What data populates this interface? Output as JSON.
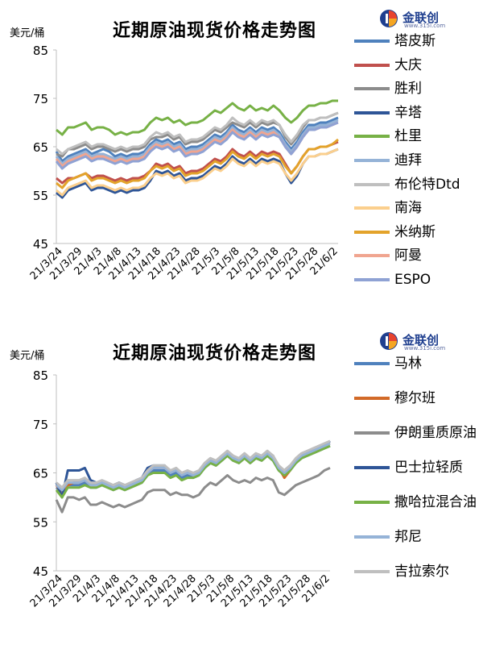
{
  "chart_data": [
    {
      "type": "line",
      "title": "近期原油现货价格走势图",
      "unit_label": "美元/桶",
      "ylim": [
        45,
        85
      ],
      "yticks": [
        45,
        55,
        65,
        75,
        85
      ],
      "xtick_labels": [
        "21/3/24",
        "21/3/29",
        "21/4/3",
        "21/4/8",
        "21/4/13",
        "21/4/18",
        "21/4/23",
        "21/4/28",
        "21/5/3",
        "21/5/8",
        "21/5/13",
        "21/5/18",
        "21/5/23",
        "21/5/28",
        "21/6/2"
      ],
      "legend_position": "right",
      "series": [
        {
          "name": "塔皮斯",
          "color": "#4f81bd",
          "values": [
            64.0,
            62.0,
            63.0,
            63.5,
            64.0,
            64.5,
            63.5,
            64.0,
            64.5,
            64.0,
            63.0,
            63.5,
            63.0,
            63.5,
            63.5,
            64.0,
            65.5,
            66.5,
            66.0,
            66.5,
            65.5,
            66.0,
            64.5,
            65.0,
            65.0,
            65.5,
            66.5,
            67.5,
            67.0,
            68.0,
            69.5,
            68.5,
            68.0,
            69.0,
            68.0,
            69.0,
            68.5,
            69.0,
            68.0,
            66.0,
            64.5,
            66.0,
            68.0,
            69.5,
            69.5,
            70.0,
            70.0,
            70.5,
            71.0
          ]
        },
        {
          "name": "大庆",
          "color": "#c0504d",
          "values": [
            58.5,
            57.5,
            58.5,
            58.5,
            59.0,
            59.5,
            58.5,
            59.0,
            59.0,
            58.5,
            58.0,
            58.5,
            58.0,
            58.5,
            58.5,
            59.0,
            60.0,
            61.5,
            61.0,
            61.5,
            60.5,
            61.0,
            59.5,
            60.0,
            60.0,
            60.5,
            61.5,
            62.5,
            62.0,
            63.0,
            64.5,
            63.5,
            63.0,
            64.0,
            63.0,
            64.0,
            63.5,
            64.0,
            63.5,
            61.5,
            59.5,
            61.0,
            63.0,
            64.5,
            64.5,
            65.0,
            65.0,
            65.5,
            66.0
          ]
        },
        {
          "name": "胜利",
          "color": "#8c8c8c",
          "values": [
            63.5,
            63.0,
            64.5,
            64.5,
            65.0,
            65.5,
            64.5,
            65.0,
            65.0,
            64.5,
            64.0,
            64.5,
            64.0,
            64.5,
            64.5,
            65.0,
            66.5,
            67.0,
            67.0,
            67.5,
            66.5,
            67.0,
            65.5,
            66.0,
            66.0,
            66.5,
            67.5,
            68.5,
            68.0,
            69.0,
            70.0,
            69.5,
            69.0,
            70.0,
            69.0,
            70.0,
            69.5,
            70.0,
            69.5,
            67.0,
            65.5,
            67.0,
            69.0,
            70.5,
            70.5,
            71.0,
            71.0,
            71.5,
            72.0
          ]
        },
        {
          "name": "辛塔",
          "color": "#2e5597",
          "values": [
            55.5,
            54.5,
            56.0,
            56.5,
            57.0,
            57.5,
            56.0,
            56.5,
            56.5,
            56.0,
            55.5,
            56.0,
            55.5,
            56.0,
            56.0,
            56.5,
            58.0,
            60.0,
            59.5,
            60.0,
            59.0,
            59.5,
            58.0,
            58.5,
            58.5,
            59.0,
            60.0,
            61.0,
            60.5,
            61.5,
            63.0,
            62.0,
            61.5,
            62.5,
            61.5,
            62.5,
            62.0,
            62.5,
            62.0,
            59.5,
            57.5,
            59.0,
            61.5,
            63.0,
            63.0,
            63.5,
            63.5,
            64.0,
            64.5
          ]
        },
        {
          "name": "杜里",
          "color": "#77b146",
          "values": [
            68.5,
            67.5,
            69.0,
            69.0,
            69.5,
            70.0,
            68.5,
            69.0,
            69.0,
            68.5,
            67.5,
            68.0,
            67.5,
            68.0,
            68.0,
            68.5,
            70.0,
            71.0,
            70.5,
            71.0,
            70.0,
            70.5,
            69.5,
            70.0,
            70.0,
            70.5,
            71.5,
            72.5,
            72.0,
            73.0,
            74.0,
            73.0,
            72.5,
            73.5,
            72.5,
            73.0,
            72.5,
            73.5,
            72.5,
            71.0,
            70.0,
            71.0,
            72.5,
            73.5,
            73.5,
            74.0,
            74.0,
            74.5,
            74.5
          ]
        },
        {
          "name": "迪拜",
          "color": "#95b3d7",
          "values": [
            63.0,
            61.5,
            62.5,
            63.0,
            63.5,
            64.0,
            63.0,
            63.5,
            63.5,
            63.0,
            62.5,
            63.0,
            62.5,
            63.0,
            63.0,
            63.5,
            65.0,
            66.0,
            65.5,
            66.0,
            65.0,
            65.5,
            64.0,
            64.5,
            64.5,
            65.0,
            66.0,
            67.0,
            66.5,
            67.5,
            69.0,
            68.0,
            67.5,
            68.5,
            67.5,
            68.5,
            68.0,
            68.5,
            67.5,
            65.5,
            64.0,
            65.5,
            67.5,
            69.0,
            69.0,
            69.5,
            69.5,
            70.0,
            70.5
          ]
        },
        {
          "name": "布伦特Dtd",
          "color": "#bfbfbf",
          "values": [
            64.5,
            63.5,
            64.5,
            65.0,
            65.5,
            66.0,
            65.0,
            65.5,
            65.5,
            65.0,
            64.5,
            65.0,
            64.5,
            65.0,
            65.0,
            65.5,
            67.0,
            68.0,
            67.5,
            68.0,
            67.0,
            67.5,
            66.0,
            66.5,
            66.5,
            67.0,
            68.0,
            69.0,
            68.5,
            69.5,
            71.0,
            70.0,
            69.5,
            70.5,
            69.5,
            70.5,
            70.0,
            70.5,
            69.5,
            67.5,
            66.0,
            67.5,
            69.5,
            70.5,
            70.5,
            71.0,
            71.0,
            71.5,
            72.0
          ]
        },
        {
          "name": "南海",
          "color": "#fbcf8d",
          "values": [
            56.0,
            55.0,
            56.5,
            57.0,
            57.5,
            58.0,
            56.5,
            57.0,
            57.0,
            56.5,
            56.0,
            56.5,
            56.0,
            56.5,
            56.5,
            57.0,
            58.5,
            59.5,
            59.0,
            59.5,
            58.5,
            59.0,
            57.5,
            58.0,
            58.0,
            58.5,
            59.5,
            60.5,
            60.0,
            61.0,
            62.5,
            61.5,
            61.0,
            62.0,
            61.0,
            62.0,
            61.5,
            62.0,
            61.5,
            59.5,
            58.0,
            59.5,
            61.5,
            63.0,
            63.0,
            63.5,
            63.5,
            64.0,
            64.5
          ]
        },
        {
          "name": "米纳斯",
          "color": "#e3a32b",
          "values": [
            57.5,
            56.5,
            58.0,
            58.5,
            59.0,
            59.5,
            58.0,
            58.5,
            58.5,
            58.0,
            57.5,
            58.0,
            57.5,
            58.0,
            58.0,
            58.5,
            60.0,
            61.0,
            60.5,
            61.0,
            60.0,
            60.5,
            59.0,
            59.5,
            59.5,
            60.0,
            61.0,
            62.0,
            61.5,
            62.5,
            64.0,
            63.0,
            62.5,
            63.5,
            62.5,
            63.5,
            63.0,
            63.5,
            63.0,
            61.0,
            59.5,
            61.0,
            63.0,
            64.5,
            64.5,
            65.0,
            65.0,
            65.5,
            66.5
          ]
        },
        {
          "name": "阿曼",
          "color": "#f0a590",
          "values": [
            62.5,
            61.0,
            62.0,
            62.5,
            63.0,
            63.5,
            62.5,
            63.0,
            63.0,
            62.5,
            62.0,
            62.5,
            62.0,
            62.5,
            62.5,
            63.0,
            64.5,
            65.5,
            65.0,
            65.5,
            64.5,
            65.0,
            63.5,
            64.0,
            64.0,
            64.5,
            65.5,
            66.5,
            66.0,
            67.0,
            68.5,
            67.5,
            67.0,
            68.0,
            67.0,
            68.0,
            67.5,
            68.0,
            67.0,
            65.0,
            63.5,
            65.0,
            67.0,
            68.5,
            68.5,
            69.0,
            69.0,
            69.5,
            70.0
          ]
        },
        {
          "name": "ESPO",
          "color": "#8fa2d4",
          "values": [
            62.0,
            60.5,
            61.5,
            62.0,
            62.5,
            63.0,
            62.0,
            62.5,
            62.5,
            62.0,
            61.5,
            62.0,
            61.5,
            62.0,
            62.0,
            62.5,
            64.0,
            65.0,
            64.5,
            65.0,
            64.0,
            64.5,
            63.0,
            63.5,
            63.5,
            64.0,
            65.0,
            66.0,
            65.5,
            66.5,
            68.0,
            67.0,
            66.5,
            67.5,
            66.5,
            67.5,
            67.0,
            67.5,
            67.0,
            65.0,
            63.5,
            65.0,
            67.0,
            68.5,
            68.5,
            69.0,
            69.0,
            69.5,
            70.0
          ]
        }
      ]
    },
    {
      "type": "line",
      "title": "近期原油现货价格走势图",
      "unit_label": "美元/桶",
      "ylim": [
        45,
        85
      ],
      "yticks": [
        45,
        55,
        65,
        75,
        85
      ],
      "xtick_labels": [
        "21/3/24",
        "21/3/29",
        "21/4/3",
        "21/4/8",
        "21/4/13",
        "21/4/18",
        "21/4/23",
        "21/4/28",
        "21/5/3",
        "21/5/8",
        "21/5/13",
        "21/5/18",
        "21/5/23",
        "21/5/28",
        "21/6/2"
      ],
      "legend_position": "right",
      "series": [
        {
          "name": "马林",
          "color": "#4f81bd",
          "values": [
            62.0,
            61.0,
            62.5,
            62.5,
            62.5,
            63.0,
            62.0,
            62.0,
            62.5,
            62.0,
            61.5,
            62.0,
            61.5,
            62.0,
            62.5,
            63.0,
            64.5,
            65.5,
            65.5,
            65.5,
            64.5,
            65.0,
            64.0,
            64.5,
            64.0,
            64.5,
            66.0,
            67.0,
            66.5,
            67.5,
            68.5,
            67.5,
            67.0,
            68.0,
            67.0,
            68.0,
            67.5,
            68.5,
            67.5,
            65.5,
            64.5,
            65.5,
            67.0,
            68.0,
            68.5,
            69.0,
            69.5,
            70.0,
            70.5
          ]
        },
        {
          "name": "穆尔班",
          "color": "#d26a28",
          "values": [
            62.5,
            60.5,
            62.5,
            63.0,
            63.0,
            63.5,
            62.5,
            62.5,
            63.0,
            62.5,
            62.0,
            62.5,
            62.0,
            62.5,
            63.0,
            63.5,
            65.0,
            66.0,
            66.0,
            66.0,
            65.0,
            65.5,
            64.5,
            65.0,
            64.5,
            65.0,
            66.5,
            67.5,
            67.0,
            68.0,
            69.0,
            68.0,
            67.5,
            68.5,
            67.5,
            68.5,
            68.0,
            69.0,
            68.0,
            66.0,
            64.0,
            65.5,
            67.5,
            68.5,
            69.0,
            69.5,
            70.0,
            70.5,
            71.0
          ]
        },
        {
          "name": "伊朗重质原油",
          "color": "#8c8c8c",
          "values": [
            59.5,
            57.0,
            60.0,
            60.0,
            59.5,
            60.0,
            58.5,
            58.5,
            59.0,
            58.5,
            58.0,
            58.5,
            58.0,
            58.5,
            59.0,
            59.5,
            61.0,
            61.5,
            61.5,
            61.5,
            60.5,
            61.0,
            60.5,
            60.5,
            60.0,
            60.5,
            62.0,
            63.0,
            62.5,
            63.5,
            64.5,
            63.5,
            63.0,
            63.5,
            63.0,
            64.0,
            63.5,
            64.0,
            63.5,
            61.0,
            60.5,
            61.5,
            62.5,
            63.0,
            63.5,
            64.0,
            64.5,
            65.5,
            66.0
          ]
        },
        {
          "name": "巴士拉轻质",
          "color": "#2e5597",
          "values": [
            63.0,
            60.0,
            65.5,
            65.5,
            65.5,
            66.0,
            63.5,
            63.0,
            63.0,
            62.5,
            62.5,
            63.0,
            62.5,
            62.5,
            63.5,
            64.0,
            66.0,
            66.5,
            66.5,
            66.5,
            65.0,
            65.5,
            64.5,
            65.0,
            65.0,
            65.0,
            66.5,
            67.5,
            67.0,
            68.0,
            69.0,
            68.0,
            67.5,
            68.5,
            67.5,
            68.5,
            68.0,
            69.0,
            68.5,
            66.0,
            65.5,
            66.5,
            67.5,
            68.5,
            69.0,
            69.5,
            70.0,
            70.5,
            71.5
          ]
        },
        {
          "name": "撒哈拉混合油",
          "color": "#77b146",
          "values": [
            61.5,
            60.0,
            62.0,
            62.0,
            62.0,
            62.5,
            62.0,
            62.0,
            62.5,
            62.0,
            61.5,
            62.0,
            61.5,
            62.0,
            62.5,
            63.0,
            64.5,
            65.0,
            65.0,
            65.0,
            64.0,
            64.5,
            63.5,
            64.0,
            64.0,
            64.5,
            66.0,
            67.0,
            66.5,
            67.5,
            68.5,
            67.5,
            67.0,
            68.0,
            67.0,
            68.0,
            67.5,
            68.5,
            67.5,
            65.5,
            64.5,
            65.5,
            67.0,
            68.0,
            68.5,
            69.0,
            69.5,
            70.0,
            70.5
          ]
        },
        {
          "name": "邦尼",
          "color": "#95b3d7",
          "values": [
            62.5,
            61.5,
            63.0,
            63.0,
            63.0,
            63.5,
            62.5,
            62.5,
            63.0,
            62.5,
            62.0,
            62.5,
            62.0,
            62.5,
            63.0,
            63.5,
            65.0,
            66.0,
            66.0,
            66.0,
            65.0,
            65.5,
            64.5,
            65.0,
            64.5,
            65.0,
            66.5,
            67.5,
            67.0,
            68.0,
            69.0,
            68.0,
            67.5,
            68.5,
            67.5,
            68.5,
            68.0,
            69.0,
            68.0,
            66.0,
            65.0,
            66.0,
            67.5,
            68.5,
            69.0,
            69.5,
            70.0,
            70.5,
            71.0
          ]
        },
        {
          "name": "吉拉索尔",
          "color": "#bfbfbf",
          "values": [
            63.0,
            62.0,
            63.5,
            63.5,
            63.5,
            64.0,
            63.0,
            63.0,
            63.5,
            63.0,
            62.5,
            63.0,
            62.5,
            63.0,
            63.5,
            64.0,
            65.5,
            66.5,
            66.5,
            66.5,
            65.5,
            66.0,
            65.0,
            65.5,
            65.0,
            65.5,
            67.0,
            68.0,
            67.5,
            68.5,
            69.5,
            68.5,
            68.0,
            69.0,
            68.0,
            69.0,
            68.5,
            69.5,
            68.5,
            66.5,
            65.5,
            66.5,
            68.0,
            69.0,
            69.5,
            70.0,
            70.5,
            71.0,
            71.5
          ]
        }
      ]
    }
  ],
  "logo": {
    "name": "金联创",
    "sub": "www.315i.com"
  }
}
